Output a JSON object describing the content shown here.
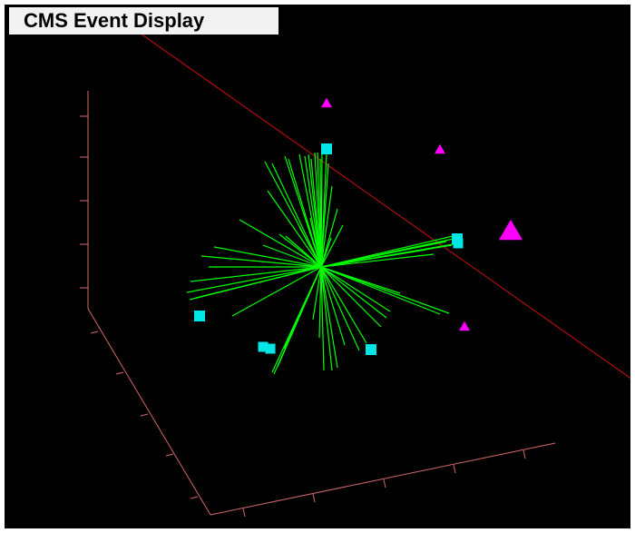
{
  "title": "CMS Event Display",
  "colors": {
    "background": "#000000",
    "axis": "#d46a6a",
    "beam_line": "#d01010",
    "tracks": "#00ff00",
    "jets_squares": "#00e5e5",
    "muons_triangles": "#ff00ff"
  },
  "icons": {
    "square_marker": "cyan-square-marker",
    "triangle_marker": "magenta-triangle-marker"
  }
}
